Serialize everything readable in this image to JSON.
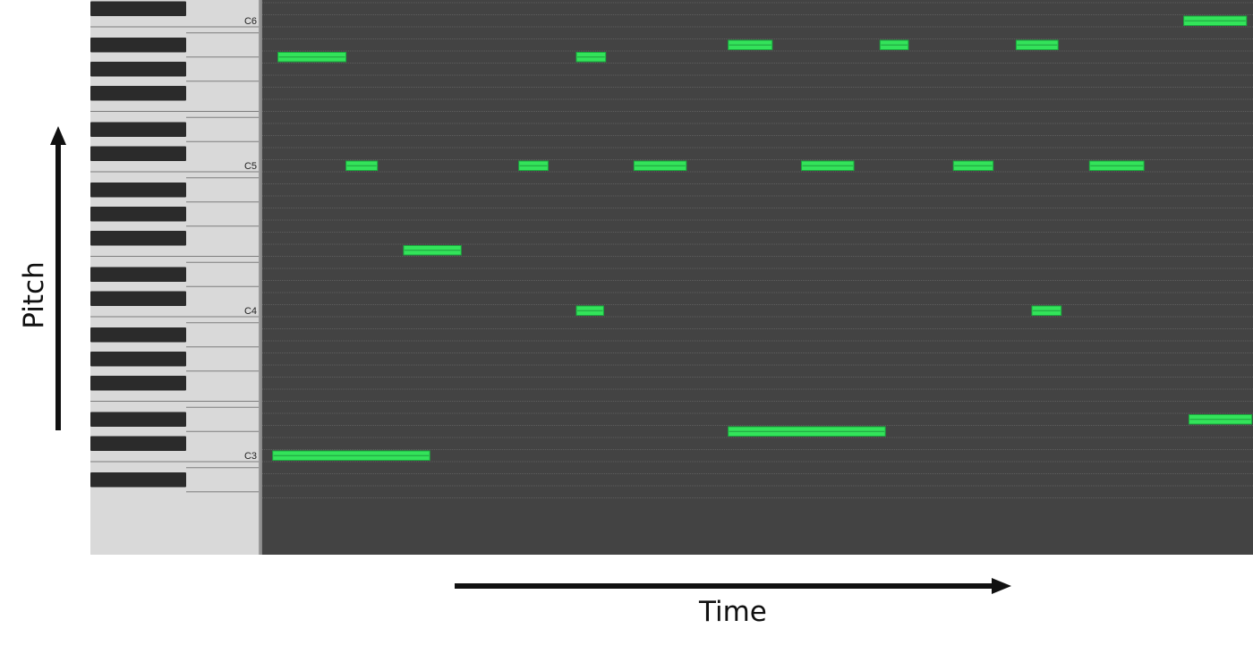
{
  "axes": {
    "pitch_label": "Pitch",
    "time_label": "Time"
  },
  "keyboard": {
    "octave_labels": [
      "C6",
      "C5",
      "C4",
      "C3"
    ],
    "lowest_visible_pitch": "A2",
    "highest_visible_pitch": "C#6"
  },
  "colors": {
    "roll_background": "#434343",
    "note_fill": "#33e35a",
    "white_key": "#d9d9d9",
    "black_key": "#2b2b2b"
  },
  "notes": [
    {
      "pitch": "C3",
      "start": 0.1,
      "duration": 1.5
    },
    {
      "pitch": "A5",
      "start": 0.15,
      "duration": 0.65
    },
    {
      "pitch": "C5",
      "start": 0.8,
      "duration": 0.3
    },
    {
      "pitch": "F4",
      "start": 1.35,
      "duration": 0.55
    },
    {
      "pitch": "C5",
      "start": 2.45,
      "duration": 0.28
    },
    {
      "pitch": "A5",
      "start": 3.0,
      "duration": 0.28
    },
    {
      "pitch": "C4",
      "start": 3.0,
      "duration": 0.26
    },
    {
      "pitch": "C5",
      "start": 3.55,
      "duration": 0.5
    },
    {
      "pitch": "A#5",
      "start": 4.45,
      "duration": 0.42
    },
    {
      "pitch": "D3",
      "start": 4.45,
      "duration": 1.5
    },
    {
      "pitch": "C5",
      "start": 5.15,
      "duration": 0.5
    },
    {
      "pitch": "A#5",
      "start": 5.9,
      "duration": 0.27
    },
    {
      "pitch": "C5",
      "start": 6.6,
      "duration": 0.38
    },
    {
      "pitch": "A#5",
      "start": 7.2,
      "duration": 0.4
    },
    {
      "pitch": "C4",
      "start": 7.35,
      "duration": 0.28
    },
    {
      "pitch": "C5",
      "start": 7.9,
      "duration": 0.52
    },
    {
      "pitch": "C6",
      "start": 8.8,
      "duration": 0.6
    },
    {
      "pitch": "D#3",
      "start": 8.85,
      "duration": 0.6
    }
  ]
}
